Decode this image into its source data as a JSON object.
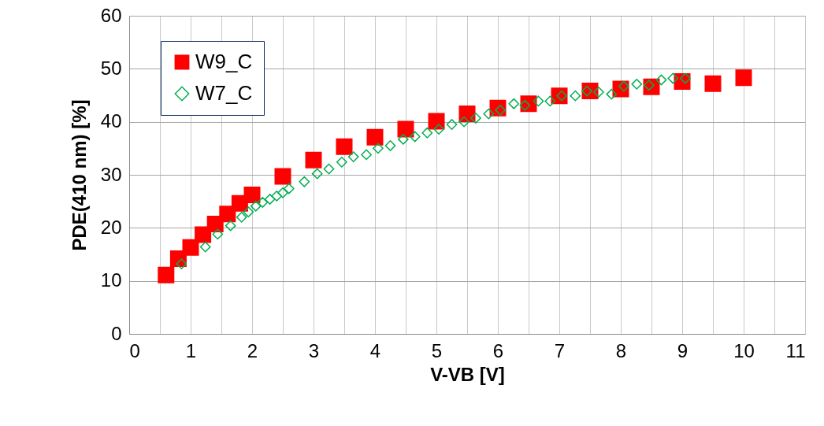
{
  "chart_data": {
    "type": "scatter",
    "xlabel": "V-VB [V]",
    "ylabel": "PDE(410 nm) [%]",
    "xlim": [
      0,
      11
    ],
    "ylim": [
      0,
      60
    ],
    "xticks": [
      0,
      {
        "value": 0.5,
        "label": null
      },
      1,
      {
        "value": 1.5,
        "label": null
      },
      2,
      {
        "value": 2.5,
        "label": null
      },
      3,
      {
        "value": 3.5,
        "label": null
      },
      4,
      {
        "value": 4.5,
        "label": null
      },
      5,
      {
        "value": 5.5,
        "label": null
      },
      6,
      {
        "value": 6.5,
        "label": null
      },
      7,
      {
        "value": 7.5,
        "label": null
      },
      8,
      {
        "value": 8.5,
        "label": null
      },
      9,
      {
        "value": 9.5,
        "label": null
      },
      10,
      {
        "value": 10.5,
        "label": null
      },
      11
    ],
    "yticks": [
      0,
      10,
      20,
      30,
      40,
      50,
      60
    ],
    "grid": true,
    "legend": "top left",
    "series": [
      {
        "name": "W9_C",
        "color": "#ff0000",
        "marker": "square",
        "x": [
          0.6,
          0.8,
          1.0,
          1.2,
          1.4,
          1.6,
          1.8,
          2.0,
          2.5,
          3.0,
          3.5,
          4.0,
          4.5,
          5.0,
          5.5,
          6.0,
          6.5,
          7.0,
          7.5,
          8.0,
          8.5,
          9.0,
          9.5,
          10.0
        ],
        "values": [
          11.1,
          14.2,
          16.3,
          18.7,
          20.7,
          22.6,
          24.6,
          26.2,
          29.7,
          32.8,
          35.3,
          37.1,
          38.6,
          40.1,
          41.5,
          42.6,
          43.4,
          44.9,
          45.8,
          46.2,
          46.6,
          47.6,
          47.2,
          48.3
        ]
      },
      {
        "name": "W7_C",
        "color": "#00b050",
        "marker": "diamond",
        "x": [
          0.85,
          1.24,
          1.44,
          1.65,
          1.83,
          1.94,
          2.06,
          2.17,
          2.29,
          2.4,
          2.5,
          2.6,
          2.85,
          3.06,
          3.25,
          3.46,
          3.65,
          3.86,
          4.05,
          4.25,
          4.46,
          4.65,
          4.85,
          5.04,
          5.25,
          5.45,
          5.64,
          5.85,
          6.04,
          6.26,
          6.44,
          6.66,
          6.85,
          7.04,
          7.26,
          7.45,
          7.64,
          7.85,
          8.05,
          8.26,
          8.46,
          8.66,
          8.85,
          9.05
        ],
        "values": [
          13.2,
          16.4,
          18.8,
          20.4,
          22.0,
          23.0,
          24.1,
          24.8,
          25.4,
          26.0,
          26.6,
          27.4,
          28.7,
          30.2,
          31.1,
          32.4,
          33.4,
          33.8,
          35.0,
          35.5,
          36.7,
          37.2,
          37.9,
          38.6,
          39.5,
          40.0,
          40.7,
          41.5,
          42.2,
          43.4,
          43.1,
          43.9,
          43.9,
          44.9,
          44.9,
          45.8,
          45.6,
          45.2,
          46.7,
          47.1,
          46.9,
          47.9,
          48.2,
          48.2
        ]
      }
    ]
  }
}
